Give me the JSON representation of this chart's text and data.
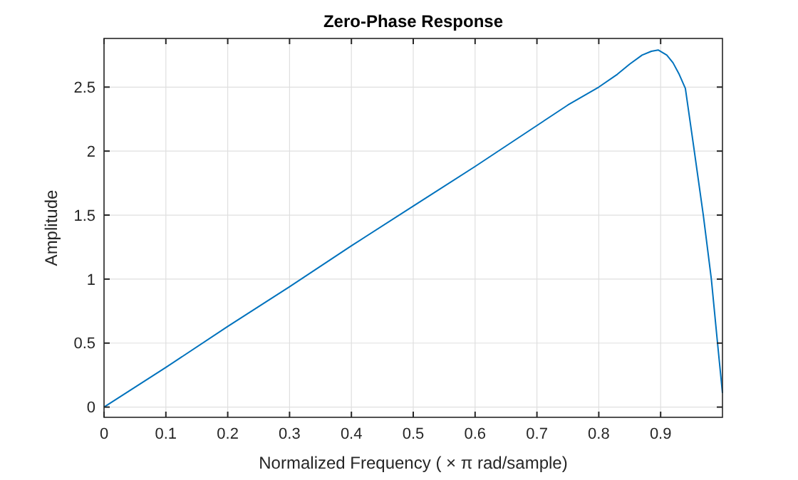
{
  "chart_data": {
    "type": "line",
    "title": "Zero-Phase Response",
    "xlabel": "Normalized Frequency  ( × π rad/sample)",
    "ylabel": "Amplitude",
    "x": [
      0,
      0.1,
      0.2,
      0.3,
      0.4,
      0.5,
      0.6,
      0.7,
      0.75,
      0.8,
      0.83,
      0.85,
      0.87,
      0.885,
      0.896,
      0.91,
      0.92,
      0.93,
      0.94,
      0.953,
      0.969,
      0.982,
      0.992,
      1.0
    ],
    "series": [
      {
        "color": "#0072bd",
        "values": [
          0,
          0.31,
          0.63,
          0.94,
          1.26,
          1.57,
          1.88,
          2.2,
          2.36,
          2.5,
          2.6,
          2.68,
          2.75,
          2.78,
          2.79,
          2.75,
          2.69,
          2.6,
          2.49,
          2.05,
          1.5,
          1.0,
          0.5,
          0.11
        ]
      }
    ],
    "xlim": [
      0,
      1
    ],
    "xticks": [
      0,
      0.1,
      0.2,
      0.3,
      0.4,
      0.5,
      0.6,
      0.7,
      0.8,
      0.9
    ],
    "ylim": [
      -0.08,
      2.88
    ],
    "yticks": [
      0,
      0.5,
      1,
      1.5,
      2,
      2.5
    ],
    "grid": true,
    "line_style": "solid",
    "marker": "none"
  }
}
